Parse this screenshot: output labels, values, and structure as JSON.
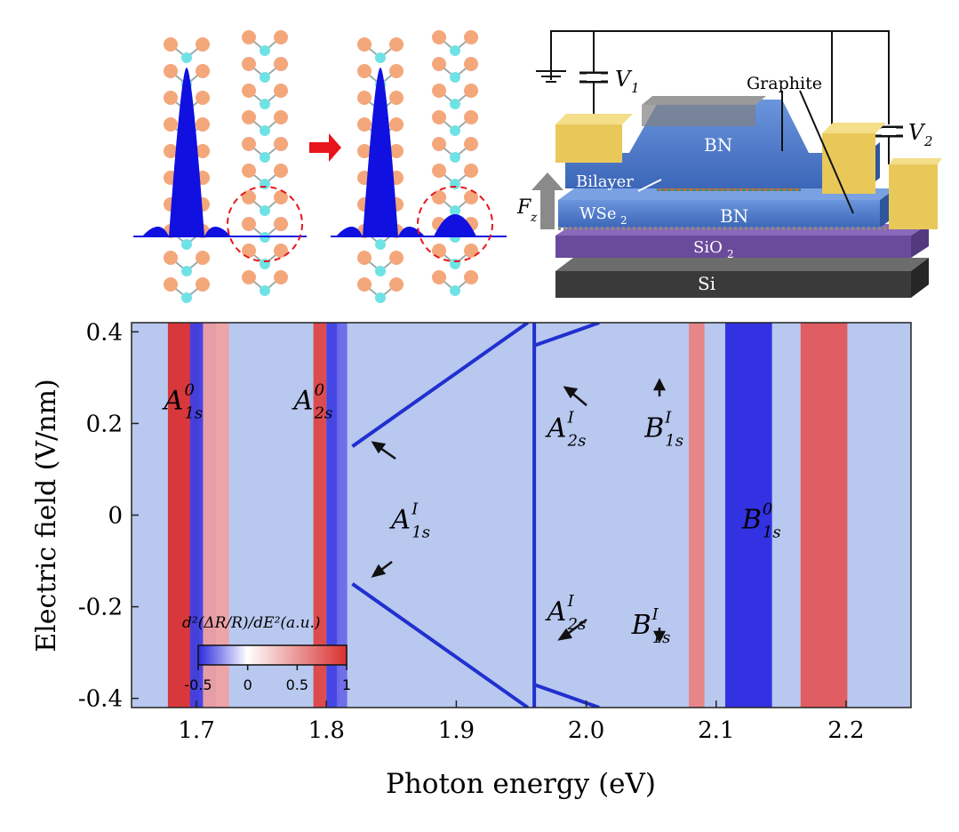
{
  "figure": {
    "panel_a": {
      "arrow_color": "#e8141b",
      "atom_color_outer": "#f4a77a",
      "atom_color_inner": "#6fe2e6",
      "wavefunction_color": "#1010e0"
    },
    "panel_b": {
      "labels": {
        "v1": "V",
        "v1_sub": "1",
        "v2": "V",
        "v2_sub": "2",
        "graphite": "Graphite",
        "bn_top": "BN",
        "bn_bottom": "BN",
        "bilayer": "Bilayer",
        "wse2": "WSe",
        "wse2_sub": "2",
        "fz": "F",
        "fz_sub": "z",
        "sio2": "SiO",
        "sio2_sub": "2",
        "si": "Si"
      },
      "colors": {
        "gold": "#e9c85a",
        "bn": "#4a78c9",
        "sio2": "#6a4a9a",
        "si": "#3a3a3a"
      }
    }
  },
  "chart_data": {
    "type": "heatmap",
    "xlabel": "Photon energy (eV)",
    "ylabel": "Electric field (V/nm)",
    "xlim": [
      1.65,
      2.25
    ],
    "ylim": [
      -0.42,
      0.42
    ],
    "xticks": [
      "1.7",
      "1.8",
      "1.9",
      "2.0",
      "2.1",
      "2.2"
    ],
    "yticks": [
      "0.4",
      "0.2",
      "0",
      "-0.2",
      "-0.4"
    ],
    "colorbar": {
      "label": "d²(ΔR/R)/dE²(a.u.)",
      "ticks": [
        "-0.5",
        "0",
        "0.5",
        "1"
      ],
      "range": [
        -0.5,
        1
      ],
      "colors": [
        "#2a2ae0",
        "#ffffff",
        "#d93030"
      ]
    },
    "bands": [
      {
        "center": 1.69,
        "width": 0.012,
        "value": 1.0
      },
      {
        "center": 1.705,
        "width": 0.01,
        "value": -0.9
      },
      {
        "center": 1.715,
        "width": 0.01,
        "value": 0.45
      },
      {
        "center": 1.795,
        "width": 0.005,
        "value": 0.9
      },
      {
        "center": 1.805,
        "width": 0.005,
        "value": -0.9
      },
      {
        "center": 1.812,
        "width": 0.004,
        "value": -0.7
      },
      {
        "center": 2.085,
        "width": 0.006,
        "value": 0.6
      },
      {
        "center": 2.125,
        "width": 0.018,
        "value": -1.0
      },
      {
        "center": 2.183,
        "width": 0.018,
        "value": 0.8
      }
    ],
    "interlayer_lines": [
      {
        "name": "A1s_I_upper",
        "points": [
          [
            1.82,
            0.15
          ],
          [
            1.955,
            0.42
          ]
        ]
      },
      {
        "name": "A1s_I_lower",
        "points": [
          [
            1.82,
            -0.15
          ],
          [
            1.955,
            -0.42
          ]
        ]
      },
      {
        "name": "A2s_I_center",
        "points": [
          [
            1.96,
            -0.42
          ],
          [
            1.96,
            0.42
          ]
        ]
      },
      {
        "name": "A2s_I_upper",
        "points": [
          [
            1.96,
            0.37
          ],
          [
            2.01,
            0.42
          ]
        ]
      },
      {
        "name": "A2s_I_lower",
        "points": [
          [
            1.96,
            -0.37
          ],
          [
            2.01,
            -0.42
          ]
        ]
      }
    ],
    "annotations": [
      {
        "id": "A1s0",
        "base": "A",
        "sub": "1s",
        "sup": "0",
        "x": 1.69,
        "y": 0.25
      },
      {
        "id": "A2s0",
        "base": "A",
        "sub": "2s",
        "sup": "0",
        "x": 1.79,
        "y": 0.25
      },
      {
        "id": "A1sI",
        "base": "A",
        "sub": "1s",
        "sup": "I",
        "x": 1.865,
        "y": -0.01
      },
      {
        "id": "A2sI_top",
        "base": "A",
        "sub": "2s",
        "sup": "I",
        "x": 1.985,
        "y": 0.19
      },
      {
        "id": "B1sI_top",
        "base": "B",
        "sub": "1s",
        "sup": "I",
        "x": 2.06,
        "y": 0.19
      },
      {
        "id": "B1s0",
        "base": "B",
        "sub": "1s",
        "sup": "0",
        "x": 2.135,
        "y": -0.01
      },
      {
        "id": "A2sI_bottom",
        "base": "A",
        "sub": "2s",
        "sup": "I",
        "x": 1.985,
        "y": -0.21
      },
      {
        "id": "B1sI_bottom",
        "base": "B",
        "sub": "1s",
        "sup": "I",
        "x": 2.05,
        "y": -0.24
      }
    ]
  }
}
